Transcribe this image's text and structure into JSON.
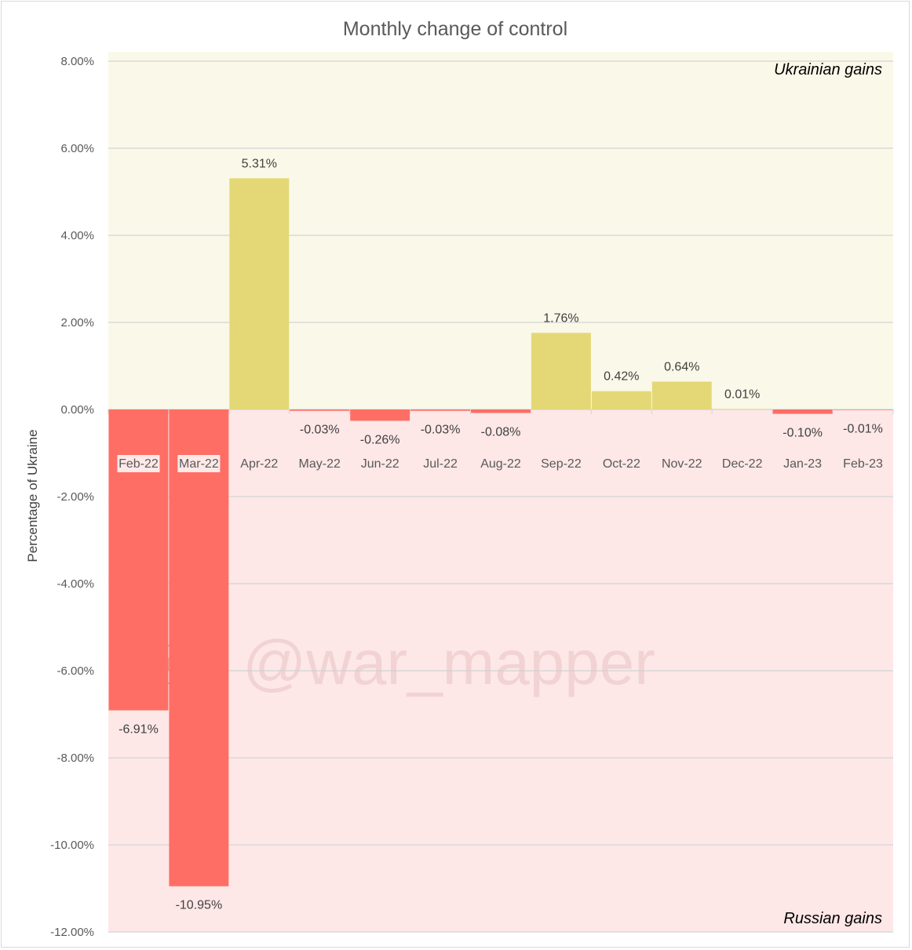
{
  "chart_data": {
    "type": "bar",
    "title": "Monthly change of control",
    "xlabel": "",
    "ylabel": "Percentage of Ukraine",
    "categories": [
      "Feb-22",
      "Mar-22",
      "Apr-22",
      "May-22",
      "Jun-22",
      "Jul-22",
      "Aug-22",
      "Sep-22",
      "Oct-22",
      "Nov-22",
      "Dec-22",
      "Jan-23",
      "Feb-23"
    ],
    "values": [
      -6.91,
      -10.95,
      5.31,
      -0.03,
      -0.26,
      -0.03,
      -0.08,
      1.76,
      0.42,
      0.64,
      0.01,
      -0.1,
      -0.01
    ],
    "data_labels": [
      "-6.91%",
      "-10.95%",
      "5.31%",
      "-0.03%",
      "-0.26%",
      "-0.03%",
      "-0.08%",
      "1.76%",
      "0.42%",
      "0.64%",
      "0.01%",
      "-0.10%",
      "-0.01%"
    ],
    "ylim": [
      -12,
      8
    ],
    "yticks": [
      8,
      6,
      4,
      2,
      0,
      -2,
      -4,
      -6,
      -8,
      -10,
      -12
    ],
    "ytick_labels": [
      "8.00%",
      "6.00%",
      "4.00%",
      "2.00%",
      "0.00%",
      "-2.00%",
      "-4.00%",
      "-6.00%",
      "-8.00%",
      "-10.00%",
      "-12.00%"
    ],
    "grid": true,
    "regions": {
      "positive_label": "Ukrainian gains",
      "negative_label": "Russian gains"
    },
    "watermark": "@war_mapper",
    "colors": {
      "positive_bar": "#e3d875",
      "negative_bar": "#ff6e65",
      "positive_region": "#faf8e8",
      "negative_region": "#fee7e7",
      "gridline": "#d9d9d9"
    }
  }
}
